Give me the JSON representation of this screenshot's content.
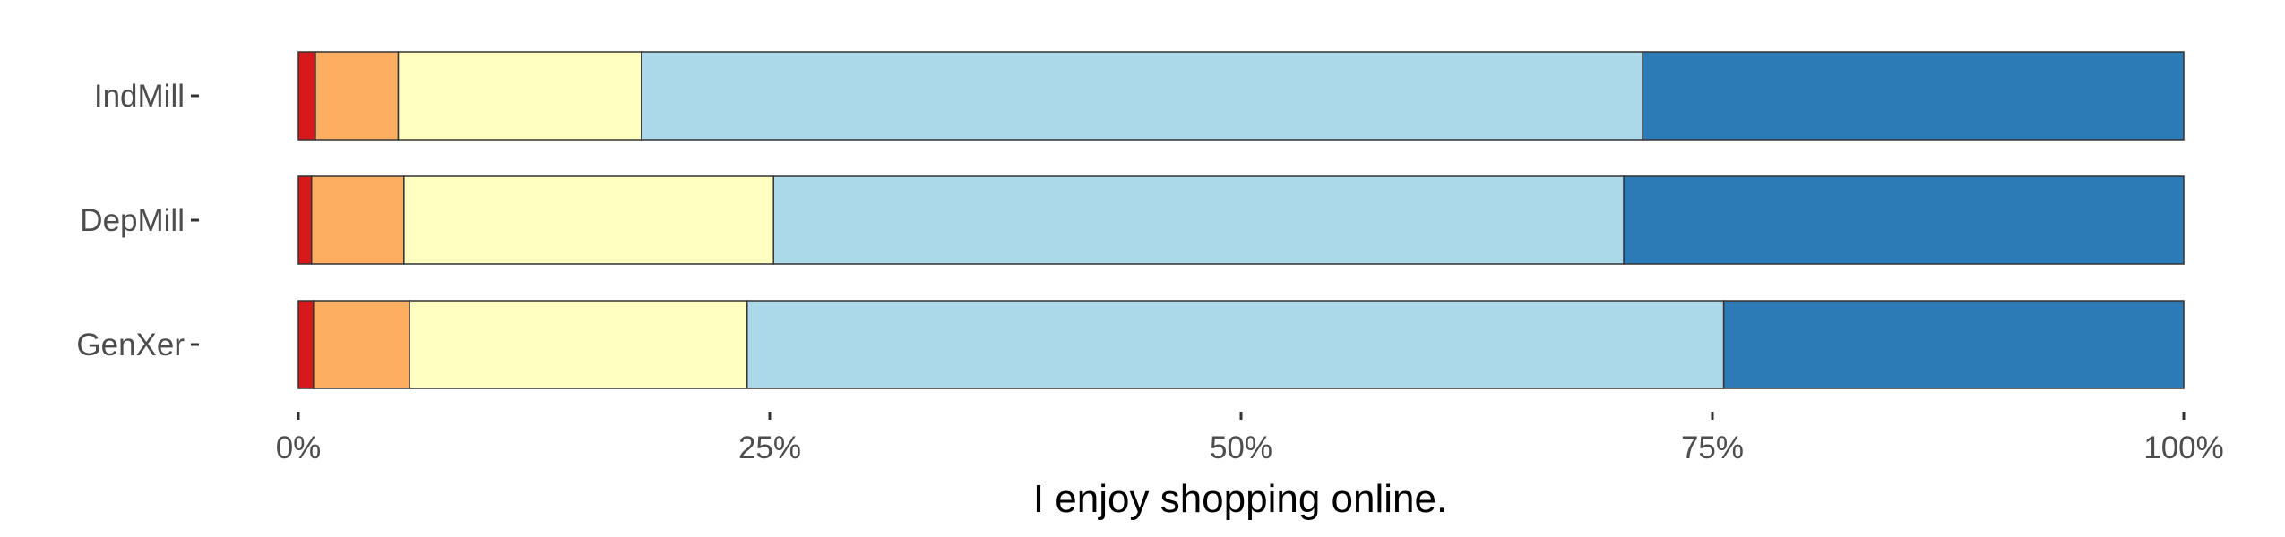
{
  "chart_data": {
    "type": "bar",
    "orientation": "horizontal",
    "stacked": true,
    "normalized": true,
    "xlabel": "I enjoy shopping online.",
    "ylabel": "",
    "xlim": [
      0,
      100
    ],
    "x_ticks": [
      0,
      25,
      50,
      75,
      100
    ],
    "x_tick_labels": [
      "0%",
      "25%",
      "50%",
      "75%",
      "100%"
    ],
    "categories": [
      "IndMill",
      "DepMill",
      "GenXer"
    ],
    "series": [
      {
        "color": "#d7191c",
        "values": [
          0.9,
          0.7,
          0.8
        ]
      },
      {
        "color": "#fdae61",
        "values": [
          4.4,
          4.9,
          5.1
        ]
      },
      {
        "color": "#ffffbf",
        "values": [
          12.9,
          19.6,
          17.9
        ]
      },
      {
        "color": "#abd9e9",
        "values": [
          53.1,
          45.1,
          51.8
        ]
      },
      {
        "color": "#2c7bb6",
        "values": [
          28.7,
          29.7,
          24.4
        ]
      }
    ],
    "grid": false,
    "legend": "none"
  }
}
